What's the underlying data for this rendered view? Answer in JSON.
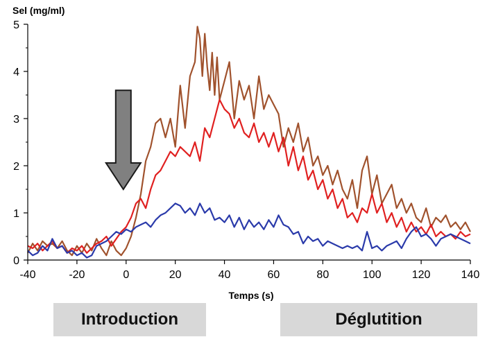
{
  "chart_data": {
    "type": "line",
    "ylabel": "Sel (mg/ml)",
    "xlabel": "Temps (s)",
    "xlim": [
      -40,
      140
    ],
    "ylim": [
      0,
      5
    ],
    "x_ticks": [
      -40,
      -20,
      0,
      20,
      40,
      60,
      80,
      100,
      120,
      140
    ],
    "y_ticks": [
      0,
      1,
      2,
      3,
      4,
      5
    ],
    "grid": false,
    "legend": "none",
    "annotations": [
      {
        "type": "arrow-down",
        "x": 0,
        "y_from": 3.6,
        "y_to": 1.5,
        "color": "#808080"
      }
    ],
    "phases": [
      "Introduction",
      "Déglutition"
    ],
    "series": [
      {
        "color": "#a0522d",
        "points": [
          [
            -40,
            0.15
          ],
          [
            -38,
            0.35
          ],
          [
            -36,
            0.2
          ],
          [
            -34,
            0.4
          ],
          [
            -32,
            0.3
          ],
          [
            -30,
            0.35
          ],
          [
            -28,
            0.25
          ],
          [
            -26,
            0.4
          ],
          [
            -24,
            0.2
          ],
          [
            -22,
            0.1
          ],
          [
            -20,
            0.3
          ],
          [
            -18,
            0.15
          ],
          [
            -16,
            0.35
          ],
          [
            -14,
            0.2
          ],
          [
            -12,
            0.45
          ],
          [
            -10,
            0.25
          ],
          [
            -8,
            0.1
          ],
          [
            -6,
            0.4
          ],
          [
            -4,
            0.2
          ],
          [
            -2,
            0.1
          ],
          [
            0,
            0.25
          ],
          [
            2,
            0.5
          ],
          [
            4,
            0.9
          ],
          [
            6,
            1.4
          ],
          [
            8,
            2.1
          ],
          [
            10,
            2.4
          ],
          [
            12,
            2.9
          ],
          [
            14,
            3.0
          ],
          [
            16,
            2.6
          ],
          [
            18,
            3.0
          ],
          [
            20,
            2.4
          ],
          [
            22,
            3.7
          ],
          [
            24,
            2.8
          ],
          [
            26,
            3.9
          ],
          [
            28,
            4.2
          ],
          [
            29,
            4.95
          ],
          [
            30,
            4.7
          ],
          [
            31,
            3.9
          ],
          [
            32,
            4.8
          ],
          [
            33,
            4.1
          ],
          [
            34,
            3.6
          ],
          [
            35,
            4.4
          ],
          [
            36,
            3.5
          ],
          [
            37,
            4.3
          ],
          [
            38,
            3.4
          ],
          [
            40,
            3.8
          ],
          [
            42,
            4.2
          ],
          [
            44,
            3.0
          ],
          [
            46,
            3.8
          ],
          [
            48,
            3.4
          ],
          [
            50,
            3.7
          ],
          [
            52,
            3.0
          ],
          [
            54,
            3.9
          ],
          [
            56,
            3.2
          ],
          [
            58,
            3.5
          ],
          [
            60,
            3.3
          ],
          [
            62,
            3.1
          ],
          [
            64,
            2.4
          ],
          [
            66,
            2.8
          ],
          [
            68,
            2.5
          ],
          [
            70,
            2.9
          ],
          [
            72,
            2.3
          ],
          [
            74,
            2.6
          ],
          [
            76,
            2.0
          ],
          [
            78,
            2.2
          ],
          [
            80,
            1.8
          ],
          [
            82,
            2.0
          ],
          [
            84,
            1.6
          ],
          [
            86,
            1.9
          ],
          [
            88,
            1.5
          ],
          [
            90,
            1.3
          ],
          [
            92,
            1.7
          ],
          [
            94,
            1.1
          ],
          [
            96,
            1.9
          ],
          [
            98,
            2.2
          ],
          [
            100,
            1.4
          ],
          [
            102,
            1.8
          ],
          [
            104,
            1.2
          ],
          [
            106,
            1.4
          ],
          [
            108,
            1.6
          ],
          [
            110,
            1.1
          ],
          [
            112,
            1.3
          ],
          [
            114,
            1.0
          ],
          [
            116,
            1.2
          ],
          [
            118,
            0.9
          ],
          [
            120,
            0.8
          ],
          [
            122,
            1.1
          ],
          [
            124,
            0.7
          ],
          [
            126,
            0.9
          ],
          [
            128,
            0.8
          ],
          [
            130,
            0.95
          ],
          [
            132,
            0.7
          ],
          [
            134,
            0.8
          ],
          [
            136,
            0.65
          ],
          [
            138,
            0.8
          ],
          [
            140,
            0.6
          ]
        ]
      },
      {
        "color": "#e02020",
        "points": [
          [
            -40,
            0.3
          ],
          [
            -38,
            0.25
          ],
          [
            -36,
            0.35
          ],
          [
            -34,
            0.2
          ],
          [
            -32,
            0.3
          ],
          [
            -30,
            0.4
          ],
          [
            -28,
            0.25
          ],
          [
            -26,
            0.3
          ],
          [
            -24,
            0.15
          ],
          [
            -22,
            0.25
          ],
          [
            -20,
            0.2
          ],
          [
            -18,
            0.3
          ],
          [
            -16,
            0.15
          ],
          [
            -14,
            0.25
          ],
          [
            -12,
            0.35
          ],
          [
            -10,
            0.4
          ],
          [
            -8,
            0.5
          ],
          [
            -6,
            0.3
          ],
          [
            -4,
            0.45
          ],
          [
            -2,
            0.6
          ],
          [
            0,
            0.7
          ],
          [
            2,
            0.9
          ],
          [
            4,
            1.2
          ],
          [
            6,
            1.3
          ],
          [
            8,
            1.1
          ],
          [
            10,
            1.5
          ],
          [
            12,
            1.8
          ],
          [
            14,
            1.9
          ],
          [
            16,
            2.1
          ],
          [
            18,
            2.3
          ],
          [
            20,
            2.2
          ],
          [
            22,
            2.4
          ],
          [
            24,
            2.3
          ],
          [
            26,
            2.2
          ],
          [
            28,
            2.5
          ],
          [
            30,
            2.1
          ],
          [
            32,
            2.8
          ],
          [
            34,
            2.6
          ],
          [
            36,
            3.0
          ],
          [
            38,
            3.4
          ],
          [
            40,
            3.2
          ],
          [
            42,
            3.1
          ],
          [
            44,
            2.8
          ],
          [
            46,
            3.0
          ],
          [
            48,
            2.7
          ],
          [
            50,
            2.6
          ],
          [
            52,
            2.9
          ],
          [
            54,
            2.5
          ],
          [
            56,
            2.7
          ],
          [
            58,
            2.4
          ],
          [
            60,
            2.7
          ],
          [
            62,
            2.3
          ],
          [
            64,
            2.6
          ],
          [
            66,
            2.0
          ],
          [
            68,
            2.4
          ],
          [
            70,
            1.9
          ],
          [
            72,
            2.2
          ],
          [
            74,
            1.7
          ],
          [
            76,
            1.9
          ],
          [
            78,
            1.5
          ],
          [
            80,
            1.7
          ],
          [
            82,
            1.3
          ],
          [
            84,
            1.5
          ],
          [
            86,
            1.1
          ],
          [
            88,
            1.3
          ],
          [
            90,
            0.9
          ],
          [
            92,
            1.0
          ],
          [
            94,
            0.8
          ],
          [
            96,
            1.1
          ],
          [
            98,
            1.0
          ],
          [
            100,
            1.4
          ],
          [
            102,
            1.0
          ],
          [
            104,
            1.2
          ],
          [
            106,
            0.8
          ],
          [
            108,
            1.0
          ],
          [
            110,
            0.7
          ],
          [
            112,
            0.9
          ],
          [
            114,
            0.6
          ],
          [
            116,
            0.8
          ],
          [
            118,
            0.6
          ],
          [
            120,
            0.7
          ],
          [
            122,
            0.55
          ],
          [
            124,
            0.75
          ],
          [
            126,
            0.5
          ],
          [
            128,
            0.6
          ],
          [
            130,
            0.5
          ],
          [
            132,
            0.55
          ],
          [
            134,
            0.45
          ],
          [
            136,
            0.6
          ],
          [
            138,
            0.5
          ],
          [
            140,
            0.55
          ]
        ]
      },
      {
        "color": "#2a3aaa",
        "points": [
          [
            -40,
            0.2
          ],
          [
            -38,
            0.1
          ],
          [
            -36,
            0.15
          ],
          [
            -34,
            0.3
          ],
          [
            -32,
            0.2
          ],
          [
            -30,
            0.45
          ],
          [
            -28,
            0.25
          ],
          [
            -26,
            0.3
          ],
          [
            -24,
            0.15
          ],
          [
            -22,
            0.2
          ],
          [
            -20,
            0.1
          ],
          [
            -18,
            0.15
          ],
          [
            -16,
            0.05
          ],
          [
            -14,
            0.1
          ],
          [
            -12,
            0.3
          ],
          [
            -10,
            0.35
          ],
          [
            -8,
            0.4
          ],
          [
            -6,
            0.5
          ],
          [
            -4,
            0.6
          ],
          [
            -2,
            0.55
          ],
          [
            0,
            0.65
          ],
          [
            2,
            0.6
          ],
          [
            4,
            0.7
          ],
          [
            6,
            0.75
          ],
          [
            8,
            0.8
          ],
          [
            10,
            0.7
          ],
          [
            12,
            0.85
          ],
          [
            14,
            0.95
          ],
          [
            16,
            1.0
          ],
          [
            18,
            1.1
          ],
          [
            20,
            1.2
          ],
          [
            22,
            1.15
          ],
          [
            24,
            1.0
          ],
          [
            26,
            1.1
          ],
          [
            28,
            0.95
          ],
          [
            30,
            1.2
          ],
          [
            32,
            1.0
          ],
          [
            34,
            1.1
          ],
          [
            36,
            0.85
          ],
          [
            38,
            0.9
          ],
          [
            40,
            0.8
          ],
          [
            42,
            0.95
          ],
          [
            44,
            0.7
          ],
          [
            46,
            0.9
          ],
          [
            48,
            0.65
          ],
          [
            50,
            0.85
          ],
          [
            52,
            0.7
          ],
          [
            54,
            0.8
          ],
          [
            56,
            0.65
          ],
          [
            58,
            0.85
          ],
          [
            60,
            0.7
          ],
          [
            62,
            0.95
          ],
          [
            64,
            0.75
          ],
          [
            66,
            0.7
          ],
          [
            68,
            0.55
          ],
          [
            70,
            0.6
          ],
          [
            72,
            0.35
          ],
          [
            74,
            0.5
          ],
          [
            76,
            0.4
          ],
          [
            78,
            0.45
          ],
          [
            80,
            0.3
          ],
          [
            82,
            0.4
          ],
          [
            84,
            0.35
          ],
          [
            86,
            0.3
          ],
          [
            88,
            0.25
          ],
          [
            90,
            0.3
          ],
          [
            92,
            0.25
          ],
          [
            94,
            0.3
          ],
          [
            96,
            0.2
          ],
          [
            98,
            0.6
          ],
          [
            100,
            0.25
          ],
          [
            102,
            0.3
          ],
          [
            104,
            0.2
          ],
          [
            106,
            0.3
          ],
          [
            108,
            0.35
          ],
          [
            110,
            0.4
          ],
          [
            112,
            0.25
          ],
          [
            114,
            0.45
          ],
          [
            116,
            0.6
          ],
          [
            118,
            0.7
          ],
          [
            120,
            0.5
          ],
          [
            122,
            0.55
          ],
          [
            124,
            0.45
          ],
          [
            126,
            0.3
          ],
          [
            128,
            0.45
          ],
          [
            130,
            0.5
          ],
          [
            132,
            0.55
          ],
          [
            134,
            0.5
          ],
          [
            136,
            0.45
          ],
          [
            138,
            0.4
          ],
          [
            140,
            0.35
          ]
        ]
      }
    ]
  }
}
